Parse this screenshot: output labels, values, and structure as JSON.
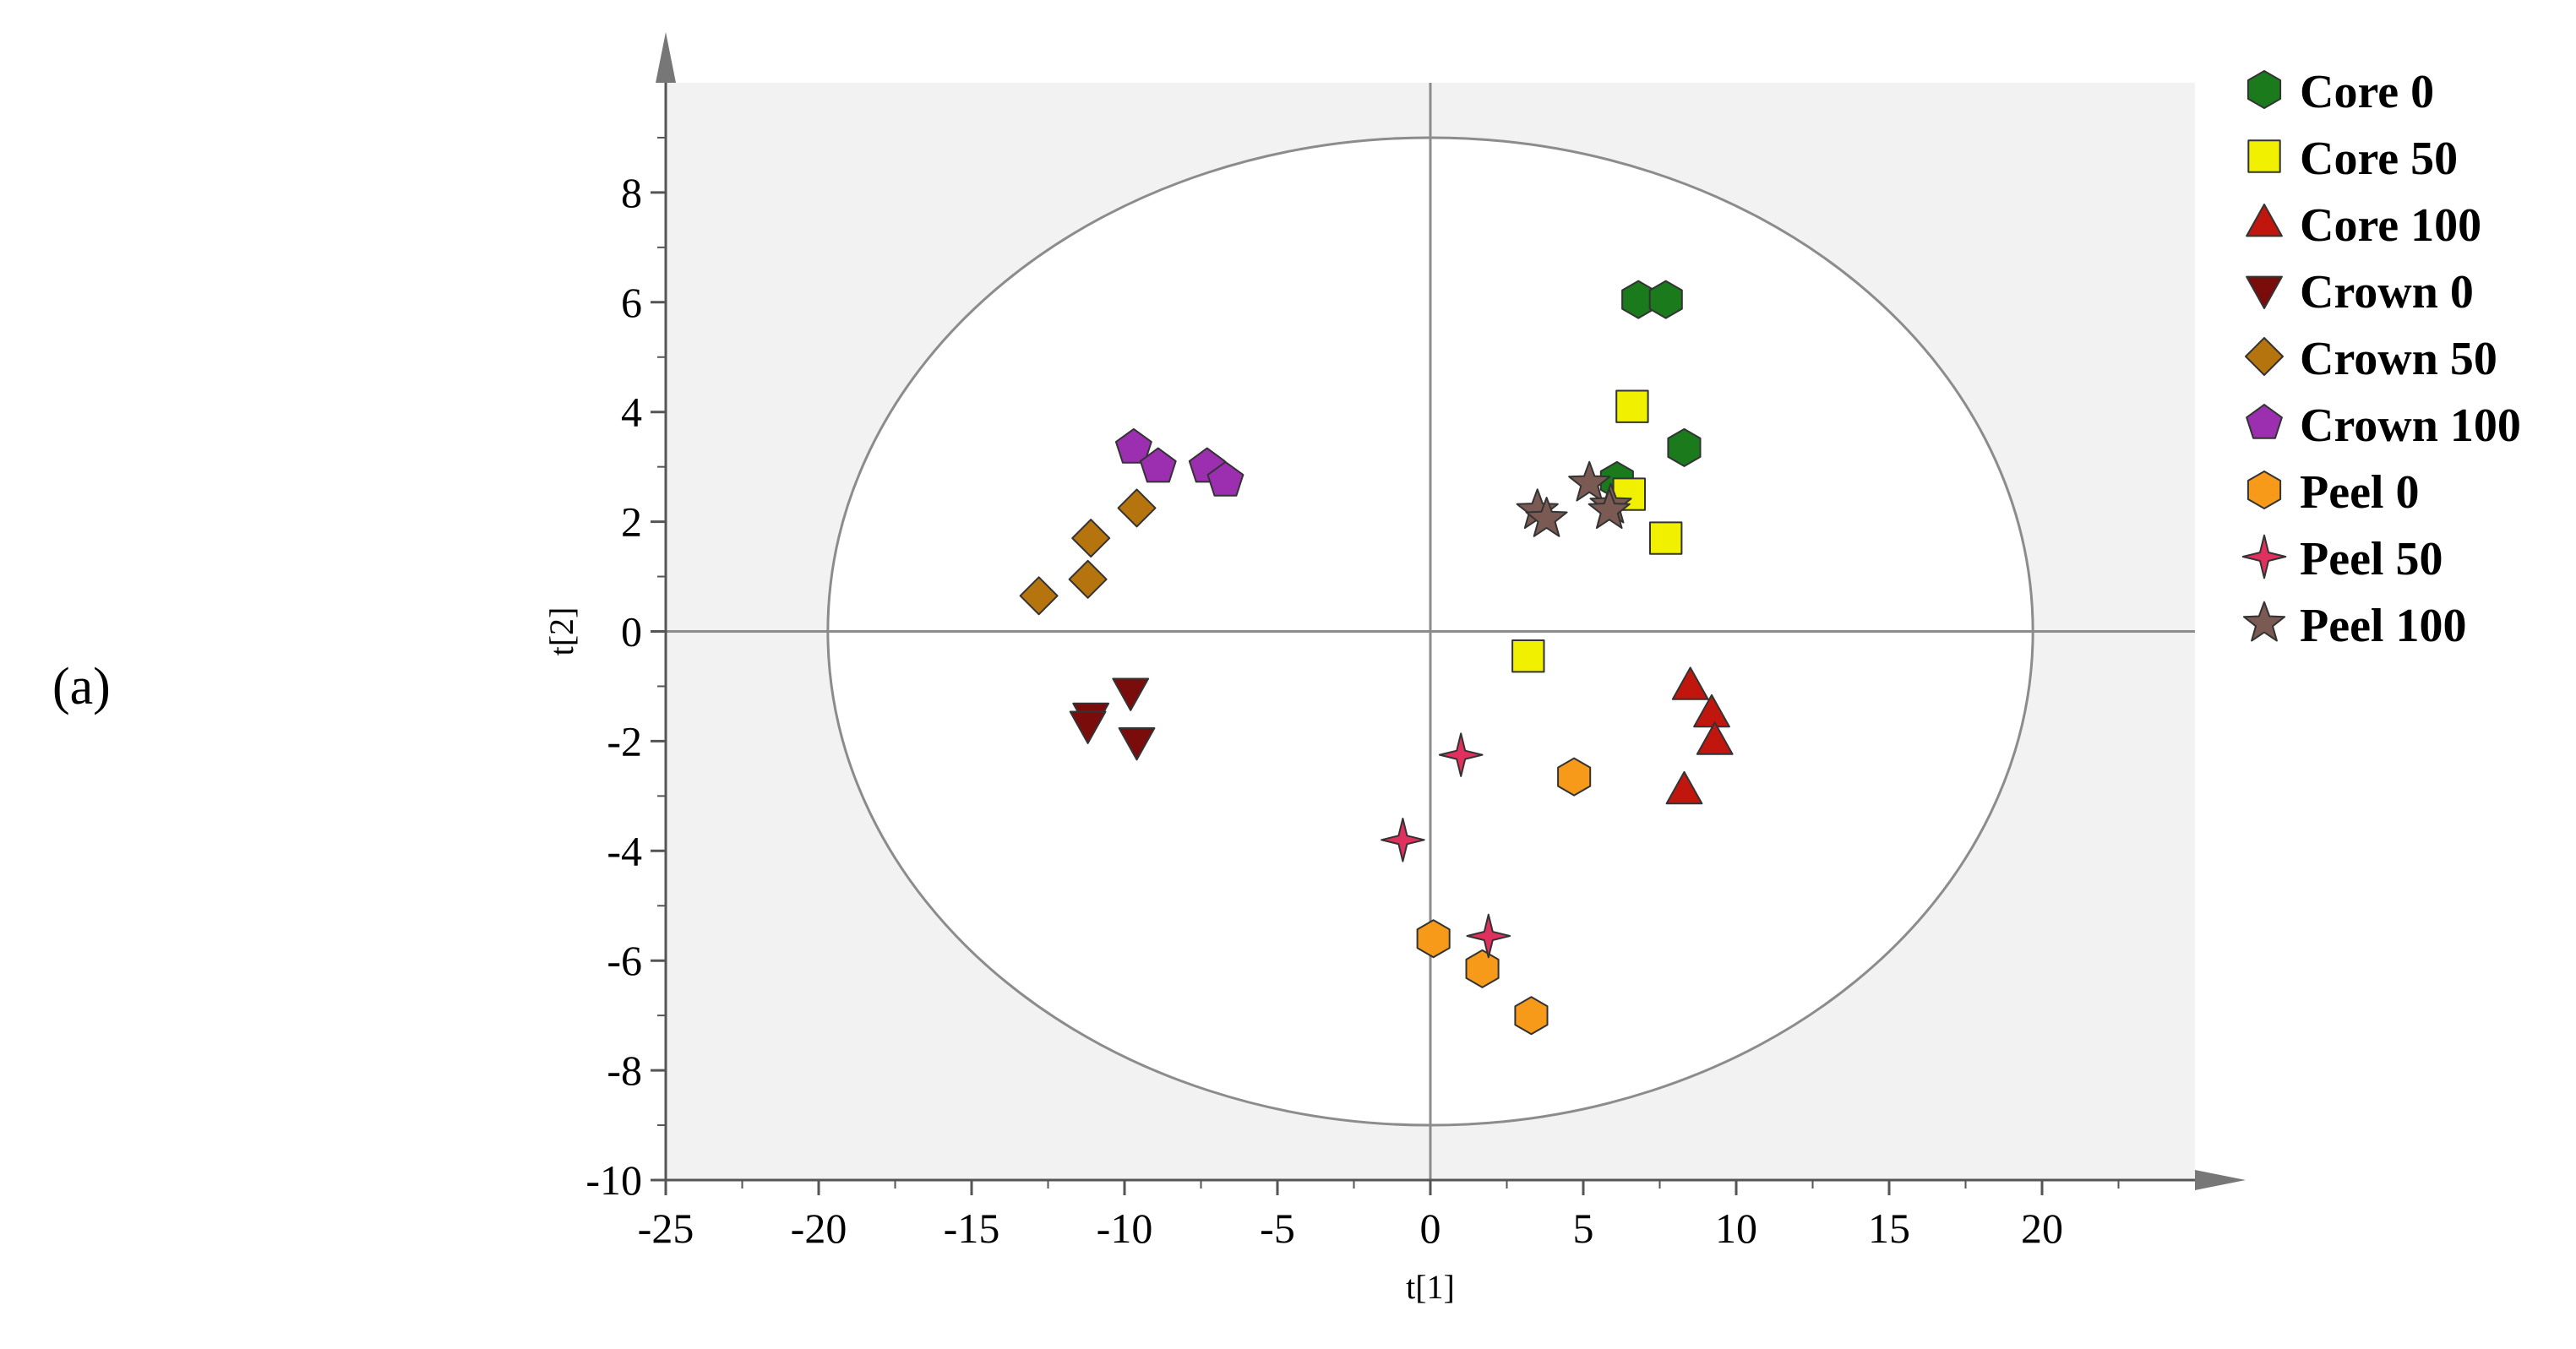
{
  "panel_label": "(a)",
  "chart_data": {
    "type": "scatter",
    "title": "",
    "xlabel": "t[1]",
    "ylabel": "t[2]",
    "xlim": [
      -25,
      25
    ],
    "ylim": [
      -10,
      10
    ],
    "xticks": [
      -25,
      -20,
      -15,
      -10,
      -5,
      0,
      5,
      10,
      15,
      20
    ],
    "yticks": [
      -10,
      -8,
      -6,
      -4,
      -2,
      0,
      2,
      4,
      6,
      8
    ],
    "grid": false,
    "background": "#f2f2f2",
    "ellipse": {
      "rx": 19.7,
      "ry": 9.0,
      "cx": 0,
      "cy": 0
    },
    "legend_position": "right",
    "series": [
      {
        "name": "Core 0",
        "marker": "hexagon",
        "color": "#1b7a1b",
        "points": [
          [
            6.8,
            6.05
          ],
          [
            7.7,
            6.05
          ],
          [
            8.3,
            3.35
          ],
          [
            6.1,
            2.75
          ]
        ]
      },
      {
        "name": "Core 50",
        "marker": "square",
        "color": "#f0f000",
        "points": [
          [
            6.6,
            4.1
          ],
          [
            6.5,
            2.5
          ],
          [
            7.7,
            1.7
          ],
          [
            3.2,
            -0.45
          ]
        ]
      },
      {
        "name": "Core 100",
        "marker": "triangle-up",
        "color": "#c0160e",
        "points": [
          [
            8.5,
            -1.0
          ],
          [
            9.2,
            -1.5
          ],
          [
            9.3,
            -2.0
          ],
          [
            8.3,
            -2.9
          ]
        ]
      },
      {
        "name": "Crown 0",
        "marker": "triangle-down",
        "color": "#7a0c0c",
        "points": [
          [
            -9.8,
            -1.1
          ],
          [
            -11.1,
            -1.55
          ],
          [
            -11.2,
            -1.7
          ],
          [
            -9.6,
            -2.0
          ]
        ]
      },
      {
        "name": "Crown 50",
        "marker": "diamond",
        "color": "#b5740e",
        "points": [
          [
            -9.6,
            2.25
          ],
          [
            -11.1,
            1.7
          ],
          [
            -11.2,
            0.95
          ],
          [
            -12.8,
            0.65
          ]
        ]
      },
      {
        "name": "Crown 100",
        "marker": "pentagon",
        "color": "#9b2fb0",
        "points": [
          [
            -9.7,
            3.35
          ],
          [
            -8.9,
            3.0
          ],
          [
            -7.3,
            3.0
          ],
          [
            -6.7,
            2.75
          ]
        ]
      },
      {
        "name": "Peel 0",
        "marker": "hexagon",
        "color": "#f79a1a",
        "points": [
          [
            4.7,
            -2.65
          ],
          [
            0.1,
            -5.6
          ],
          [
            1.7,
            -6.15
          ],
          [
            3.3,
            -7.0
          ]
        ]
      },
      {
        "name": "Peel 50",
        "marker": "star4",
        "color": "#e0305e",
        "points": [
          [
            1.0,
            -2.25
          ],
          [
            -0.9,
            -3.8
          ],
          [
            1.9,
            -5.55
          ]
        ]
      },
      {
        "name": "Peel 100",
        "marker": "star5",
        "color": "#7a5a52",
        "points": [
          [
            5.2,
            2.7
          ],
          [
            3.5,
            2.2
          ],
          [
            3.8,
            2.05
          ],
          [
            5.9,
            2.3
          ],
          [
            5.85,
            2.2
          ]
        ]
      }
    ]
  }
}
